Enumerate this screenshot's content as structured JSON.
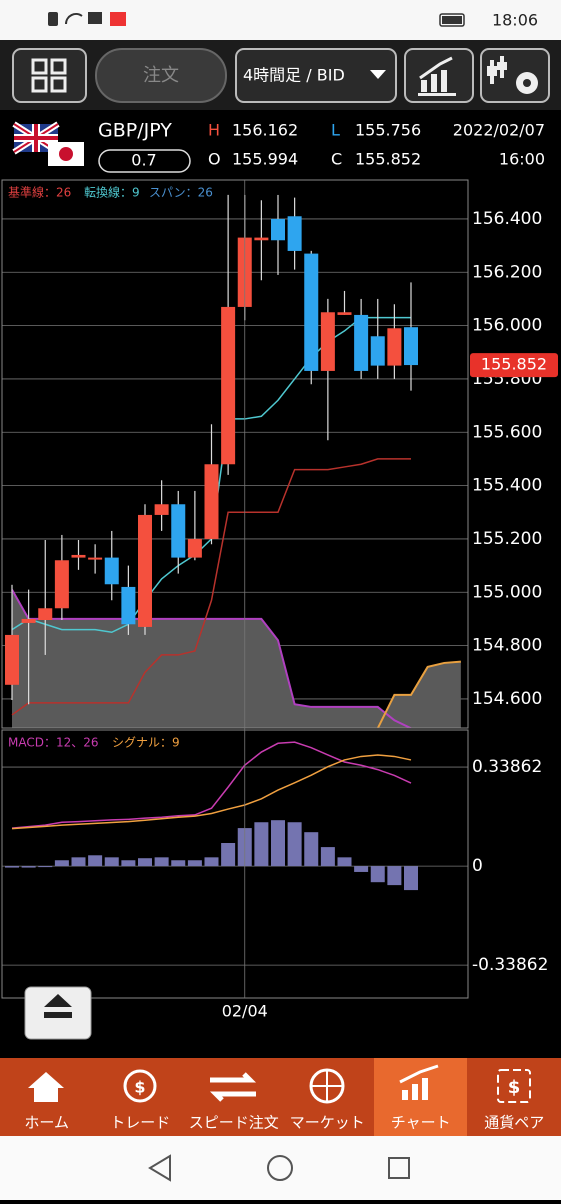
{
  "status_bar": {
    "time": "18:06"
  },
  "toolbar": {
    "order": "注文",
    "timeframe": "4時間足 / BID"
  },
  "quote": {
    "pair": "GBP/JPY",
    "spread": 0.7,
    "h_label": "H",
    "l_label": "L",
    "o_label": "O",
    "c_label": "C",
    "date": "2022/02/07",
    "time": "16:00"
  },
  "chart_data": [
    {
      "type": "candlestick",
      "up_color": "#f4503e",
      "down_color": "#2ea5ef",
      "candles": [
        {
          "open": 154.653,
          "high": 155.028,
          "low": 154.596,
          "close": 154.84
        },
        {
          "open": 154.885,
          "high": 155.01,
          "low": 154.58,
          "close": 154.9
        },
        {
          "open": 154.896,
          "high": 155.196,
          "low": 154.765,
          "close": 154.94
        },
        {
          "open": 154.94,
          "high": 155.215,
          "low": 154.896,
          "close": 155.12
        },
        {
          "open": 155.13,
          "high": 155.196,
          "low": 155.084,
          "close": 155.14
        },
        {
          "open": 155.13,
          "high": 155.18,
          "low": 155.07,
          "close": 155.13
        },
        {
          "open": 155.13,
          "high": 155.23,
          "low": 154.97,
          "close": 155.03
        },
        {
          "open": 155.02,
          "high": 155.1,
          "low": 154.84,
          "close": 154.88
        },
        {
          "open": 154.87,
          "high": 155.33,
          "low": 154.84,
          "close": 155.29
        },
        {
          "open": 155.29,
          "high": 155.42,
          "low": 155.23,
          "close": 155.33
        },
        {
          "open": 155.33,
          "high": 155.38,
          "low": 155.07,
          "close": 155.13
        },
        {
          "open": 155.13,
          "high": 155.38,
          "low": 155.12,
          "close": 155.2
        },
        {
          "open": 155.2,
          "high": 155.63,
          "low": 155.18,
          "close": 155.48
        },
        {
          "open": 155.48,
          "high": 156.49,
          "low": 155.44,
          "close": 156.07
        },
        {
          "open": 156.07,
          "high": 156.49,
          "low": 156.02,
          "close": 156.33
        },
        {
          "open": 156.32,
          "high": 156.47,
          "low": 156.17,
          "close": 156.33
        },
        {
          "open": 156.4,
          "high": 156.49,
          "low": 156.19,
          "close": 156.32
        },
        {
          "open": 156.41,
          "high": 156.48,
          "low": 156.21,
          "close": 156.28
        },
        {
          "open": 156.27,
          "high": 156.28,
          "low": 155.78,
          "close": 155.83
        },
        {
          "open": 155.83,
          "high": 156.1,
          "low": 155.57,
          "close": 156.05
        },
        {
          "open": 156.04,
          "high": 156.13,
          "low": 156.04,
          "close": 156.05
        },
        {
          "open": 156.04,
          "high": 156.1,
          "low": 155.8,
          "close": 155.83
        },
        {
          "open": 155.96,
          "high": 156.1,
          "low": 155.8,
          "close": 155.85
        },
        {
          "open": 155.85,
          "high": 156.08,
          "low": 155.8,
          "close": 155.99
        },
        {
          "open": 155.994,
          "high": 156.162,
          "low": 155.756,
          "close": 155.852
        }
      ],
      "series": [
        {
          "name": "基準線：26",
          "color": "#b8322c",
          "values": [
            154.54,
            154.585,
            154.585,
            154.585,
            154.585,
            154.585,
            154.585,
            154.585,
            154.7,
            154.765,
            154.765,
            154.78,
            154.97,
            155.3,
            155.3,
            155.3,
            155.3,
            155.46,
            155.46,
            155.46,
            155.47,
            155.48,
            155.5,
            155.5,
            155.5
          ]
        },
        {
          "name": "転換線：9",
          "color": "#4fc8d0",
          "values": [
            154.86,
            154.9,
            154.88,
            154.86,
            154.86,
            154.86,
            154.85,
            154.88,
            154.97,
            155.05,
            155.1,
            155.14,
            155.2,
            155.65,
            155.65,
            155.66,
            155.72,
            155.8,
            155.88,
            155.94,
            155.98,
            156.03,
            156.03,
            156.03,
            156.03
          ]
        }
      ],
      "span": {
        "name": "スパン：26",
        "name_color": "#4a90d0",
        "cloud_color": "#5a5a5a",
        "lines": [
          {
            "color": "#b040c0",
            "values": [
              155.01,
              154.9,
              154.9,
              154.9,
              154.9,
              154.9,
              154.9,
              154.9,
              154.9,
              154.9,
              154.9,
              154.9,
              154.9,
              154.9,
              154.9,
              154.9,
              154.82,
              154.58,
              154.57,
              154.57,
              154.57,
              154.57,
              154.57,
              154.52,
              154.49,
              null,
              null,
              null
            ]
          },
          {
            "color": "#e8a040",
            "values": [
              null,
              null,
              null,
              null,
              null,
              null,
              null,
              null,
              null,
              null,
              null,
              null,
              null,
              null,
              null,
              null,
              null,
              null,
              null,
              null,
              null,
              null,
              154.49,
              154.615,
              154.615,
              154.72,
              154.735,
              154.74
            ]
          }
        ]
      },
      "ylim": [
        154.491,
        156.546
      ],
      "yticks": [
        {
          "value": 154.6,
          "label": "154.600"
        },
        {
          "value": 154.8,
          "label": "154.800"
        },
        {
          "value": 155.0,
          "label": "155.000"
        },
        {
          "value": 155.2,
          "label": "155.200"
        },
        {
          "value": 155.4,
          "label": "155.400"
        },
        {
          "value": 155.6,
          "label": "155.600"
        },
        {
          "value": 155.8,
          "label": "155.800"
        },
        {
          "value": 156.0,
          "label": "156.000"
        },
        {
          "value": 156.2,
          "label": "156.200"
        },
        {
          "value": 156.4,
          "label": "156.400"
        }
      ],
      "grid": true
    },
    {
      "type": "macd",
      "categories": [
        null,
        null,
        null,
        null,
        null,
        null,
        null,
        null,
        null,
        null,
        null,
        null,
        null,
        null,
        "02/04",
        null,
        null,
        null,
        null,
        null,
        null,
        null,
        null,
        null,
        null
      ],
      "histogram": {
        "color": "#7474b0",
        "values": [
          -0.005,
          -0.005,
          -0.003,
          0.02,
          0.03,
          0.037,
          0.03,
          0.02,
          0.027,
          0.03,
          0.02,
          0.02,
          0.03,
          0.079,
          0.13,
          0.15,
          0.157,
          0.15,
          0.116,
          0.065,
          0.03,
          -0.02,
          -0.055,
          -0.065,
          -0.082
        ]
      },
      "series": [
        {
          "name": "MACD：12、26",
          "color": "#c83cb0",
          "values": [
            0.13,
            0.135,
            0.14,
            0.15,
            0.152,
            0.155,
            0.158,
            0.16,
            0.164,
            0.167,
            0.172,
            0.175,
            0.198,
            0.27,
            0.345,
            0.39,
            0.42,
            0.424,
            0.405,
            0.38,
            0.356,
            0.345,
            0.33,
            0.31,
            0.284
          ]
        },
        {
          "name": "シグナル：9",
          "color": "#f0a040",
          "values": [
            0.128,
            0.132,
            0.136,
            0.14,
            0.143,
            0.146,
            0.149,
            0.152,
            0.157,
            0.162,
            0.167,
            0.171,
            0.18,
            0.195,
            0.209,
            0.23,
            0.26,
            0.285,
            0.311,
            0.34,
            0.363,
            0.375,
            0.38,
            0.375,
            0.363
          ]
        }
      ],
      "ylim": [
        -0.451,
        0.462
      ],
      "yticks": [
        -0.33862,
        0,
        0.33862
      ],
      "grid": true
    }
  ],
  "nav": [
    "ホーム",
    "トレード",
    "スピード注文",
    "マーケット",
    "チャート",
    "通貨ペア"
  ]
}
